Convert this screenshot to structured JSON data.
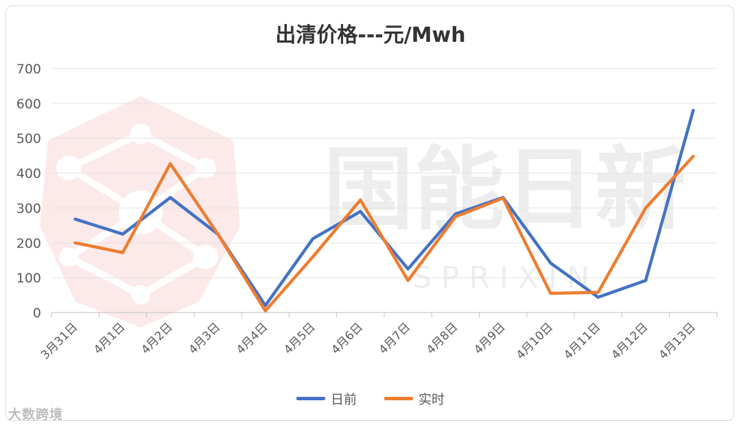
{
  "chart_data": {
    "type": "line",
    "title": "出清价格---元/Mwh",
    "categories": [
      "3月31日",
      "4月1日",
      "4月2日",
      "4月3日",
      "4月4日",
      "4月5日",
      "4月6日",
      "4月7日",
      "4月8日",
      "4月9日",
      "4月10日",
      "4月11日",
      "4月12日",
      "4月13日"
    ],
    "y_ticks": [
      "0",
      "100",
      "200",
      "300",
      "400",
      "500",
      "600",
      "700"
    ],
    "ylim": [
      0,
      700
    ],
    "grid": true,
    "legend_position": "bottom",
    "series": [
      {
        "name": "日前",
        "color": "#4472c4",
        "values": [
          268,
          225,
          330,
          225,
          20,
          212,
          290,
          125,
          283,
          330,
          142,
          44,
          92,
          580
        ]
      },
      {
        "name": "实时",
        "color": "#ed7d31",
        "values": [
          200,
          172,
          427,
          225,
          5,
          160,
          323,
          92,
          275,
          328,
          55,
          58,
          300,
          448
        ]
      }
    ]
  },
  "watermark": {
    "brand_chars": "国能日新",
    "brand_latin": "S P R I X I N",
    "corner_text": "大数跨境"
  }
}
